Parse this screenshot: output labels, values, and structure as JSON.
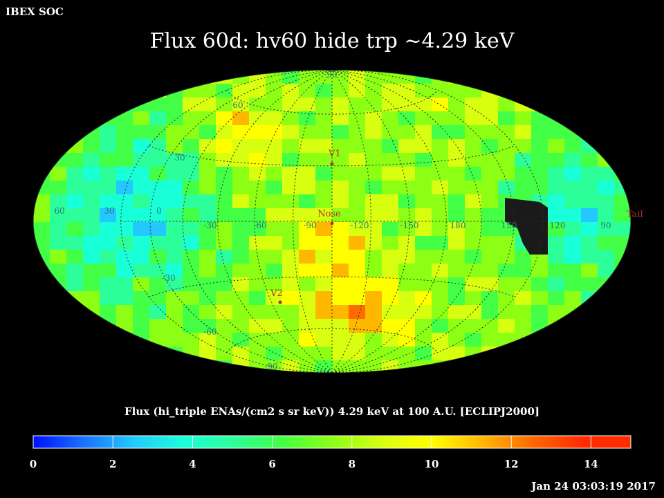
{
  "header": {
    "org_label": "IBEX SOC",
    "title": "Flux   60d: hv60 hide trp ~4.29 keV"
  },
  "map": {
    "projection": "Aitoff-Hammer ellipse (ecliptic)",
    "grid_labels": {
      "latitude": [
        {
          "text": "60",
          "lat": 60,
          "lon_side": "left"
        },
        {
          "text": "30",
          "lat": 30,
          "lon_side": "left"
        },
        {
          "text": "-30",
          "lat": -30,
          "lon_side": "left"
        },
        {
          "text": "-60",
          "lat": -60,
          "lon_side": "left"
        },
        {
          "text": "90",
          "lat": 90
        },
        {
          "text": "-90",
          "lat": -90
        }
      ],
      "longitude_along_equator": [
        "60",
        "30",
        "0",
        "-30",
        "-60",
        "-90",
        "-120",
        "-150",
        "180",
        "150",
        "120",
        "90"
      ]
    },
    "markers": [
      {
        "label": "V1",
        "color": "#b03030"
      },
      {
        "label": "Nose",
        "color": "#b03030"
      },
      {
        "label": "V2",
        "color": "#b03030"
      },
      {
        "label": "Tail",
        "color": "#b03030"
      }
    ],
    "masked_region_color": "#1a1a1a"
  },
  "colorbar": {
    "title": "Flux (hi_triple ENAs/(cm2 s sr keV))  4.29 keV at 100 A.U. [ECLIPJ2000]",
    "ticks": [
      "0",
      "2",
      "4",
      "6",
      "8",
      "10",
      "12",
      "14"
    ],
    "min": 0,
    "max": 15,
    "colors": [
      "#0010ff",
      "#1a70ff",
      "#22c8ff",
      "#19ffd8",
      "#2cff9a",
      "#43ff45",
      "#8dff14",
      "#d8ff10",
      "#ffff00",
      "#ffb800",
      "#ff6a00",
      "#ff2c00"
    ]
  },
  "footer": {
    "timestamp": "Jan 24 03:03:19 2017"
  }
}
